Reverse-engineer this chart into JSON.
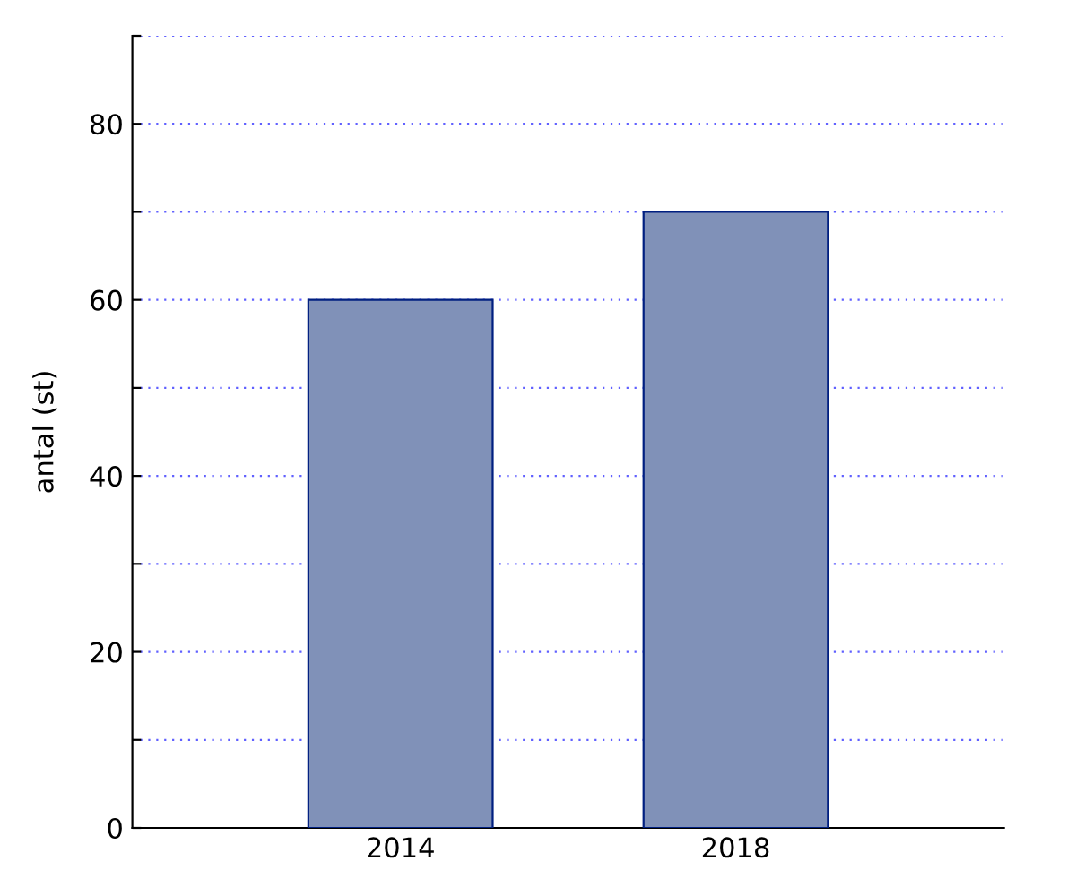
{
  "chart_data": {
    "type": "bar",
    "ylabel": "antal (st)",
    "categories": [
      "2014",
      "2018"
    ],
    "series": [
      {
        "color": "#8091b8",
        "values": [
          60,
          70
        ]
      }
    ],
    "ylim": [
      0,
      90
    ],
    "yticks": [
      0,
      {
        "value": 10,
        "label": null
      },
      20,
      {
        "value": 30,
        "label": null
      },
      40,
      {
        "value": 50,
        "label": null
      },
      60,
      {
        "value": 70,
        "label": null
      },
      80,
      {
        "value": 90,
        "label": null
      }
    ],
    "grid": "y"
  }
}
